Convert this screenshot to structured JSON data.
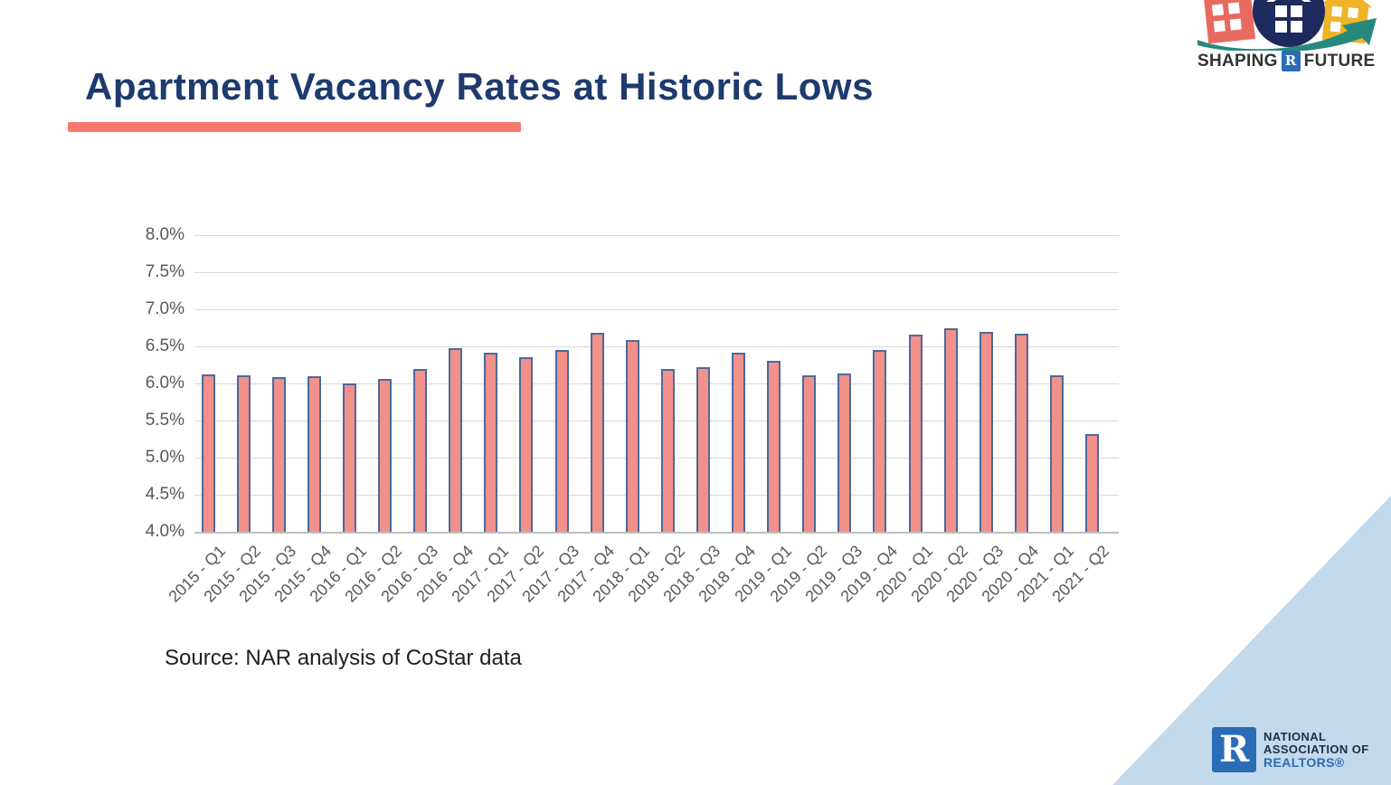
{
  "slide": {
    "title": "Apartment Vacancy Rates at Historic Lows",
    "source_note": "Source: NAR analysis of CoStar data"
  },
  "logos": {
    "shaping_future": {
      "word_left": "SHAPING",
      "word_right": "FUTURE",
      "r_symbol": "R"
    },
    "nar": {
      "r_symbol": "R",
      "line1": "NATIONAL",
      "line2": "ASSOCIATION OF",
      "line3": "REALTORS®"
    }
  },
  "colors": {
    "title_navy": "#1E3A6E",
    "accent_coral": "#F4796C",
    "bar_fill": "#F2908A",
    "bar_border": "#4C6A9C",
    "gridline": "#D9D9D9",
    "axis_text": "#595959",
    "corner_triangle": "#C3D9EC",
    "realtor_blue": "#2A6CB5",
    "nar_navy": "#1B2E4A"
  },
  "chart_data": {
    "type": "bar",
    "title": "Apartment Vacancy Rates at Historic Lows",
    "xlabel": "",
    "ylabel": "",
    "ylim": [
      4.0,
      8.0
    ],
    "y_tick_labels_top_to_bottom": [
      "8.0%",
      "7.5%",
      "7.0%",
      "6.5%",
      "6.0%",
      "5.5%",
      "5.0%",
      "4.5%",
      "4.0%"
    ],
    "grid": true,
    "legend": null,
    "categories": [
      "2015 - Q1",
      "2015 - Q2",
      "2015 - Q3",
      "2015 - Q4",
      "2016 - Q1",
      "2016 - Q2",
      "2016 - Q3",
      "2016 - Q4",
      "2017 - Q1",
      "2017 - Q2",
      "2017 - Q3",
      "2017 - Q4",
      "2018 - Q1",
      "2018 - Q2",
      "2018 - Q3",
      "2018 - Q4",
      "2019 - Q1",
      "2019 - Q2",
      "2019 - Q3",
      "2019 - Q4",
      "2020 - Q1",
      "2020 - Q2",
      "2020 - Q3",
      "2020 - Q4",
      "2021 - Q1",
      "2021 - Q2"
    ],
    "values": [
      6.12,
      6.11,
      6.09,
      6.1,
      6.0,
      6.06,
      6.19,
      6.48,
      6.42,
      6.35,
      6.45,
      6.68,
      6.58,
      6.2,
      6.22,
      6.41,
      6.3,
      6.11,
      6.14,
      6.45,
      6.66,
      6.75,
      6.69,
      6.67,
      6.11,
      5.32
    ]
  }
}
